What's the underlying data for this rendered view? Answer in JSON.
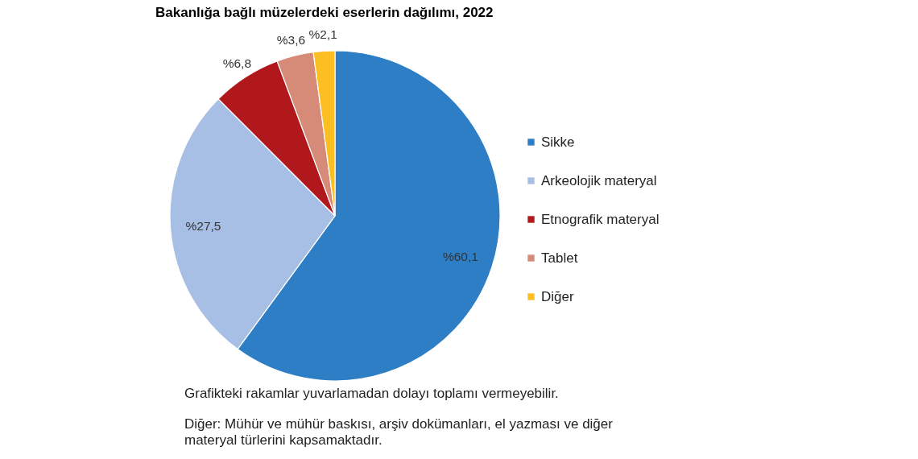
{
  "chart_data": {
    "type": "pie",
    "title": "Bakanlığa bağlı müzelerdeki eserlerin dağılımı, 2022",
    "categories": [
      "Sikke",
      "Arkeolojik materyal",
      "Etnografik materyal",
      "Tablet",
      "Diğer"
    ],
    "values": [
      60.1,
      27.5,
      6.8,
      3.6,
      2.1
    ],
    "colors": [
      "#2e7ec5",
      "#a7bfe4",
      "#b0181c",
      "#d68b79",
      "#fbbf22"
    ],
    "value_labels": [
      "%60,1",
      "%27,5",
      "%6,8",
      "%3,6",
      "%2,1"
    ],
    "legend": "right",
    "annotations": [
      "Grafikteki rakamlar yuvarlamadan dolayı toplamı vermeyebilir.",
      "Diğer: Mühür ve mühür baskısı, arşiv dokümanları, el yazması ve diğer materyal türlerini kapsamaktadır."
    ]
  }
}
